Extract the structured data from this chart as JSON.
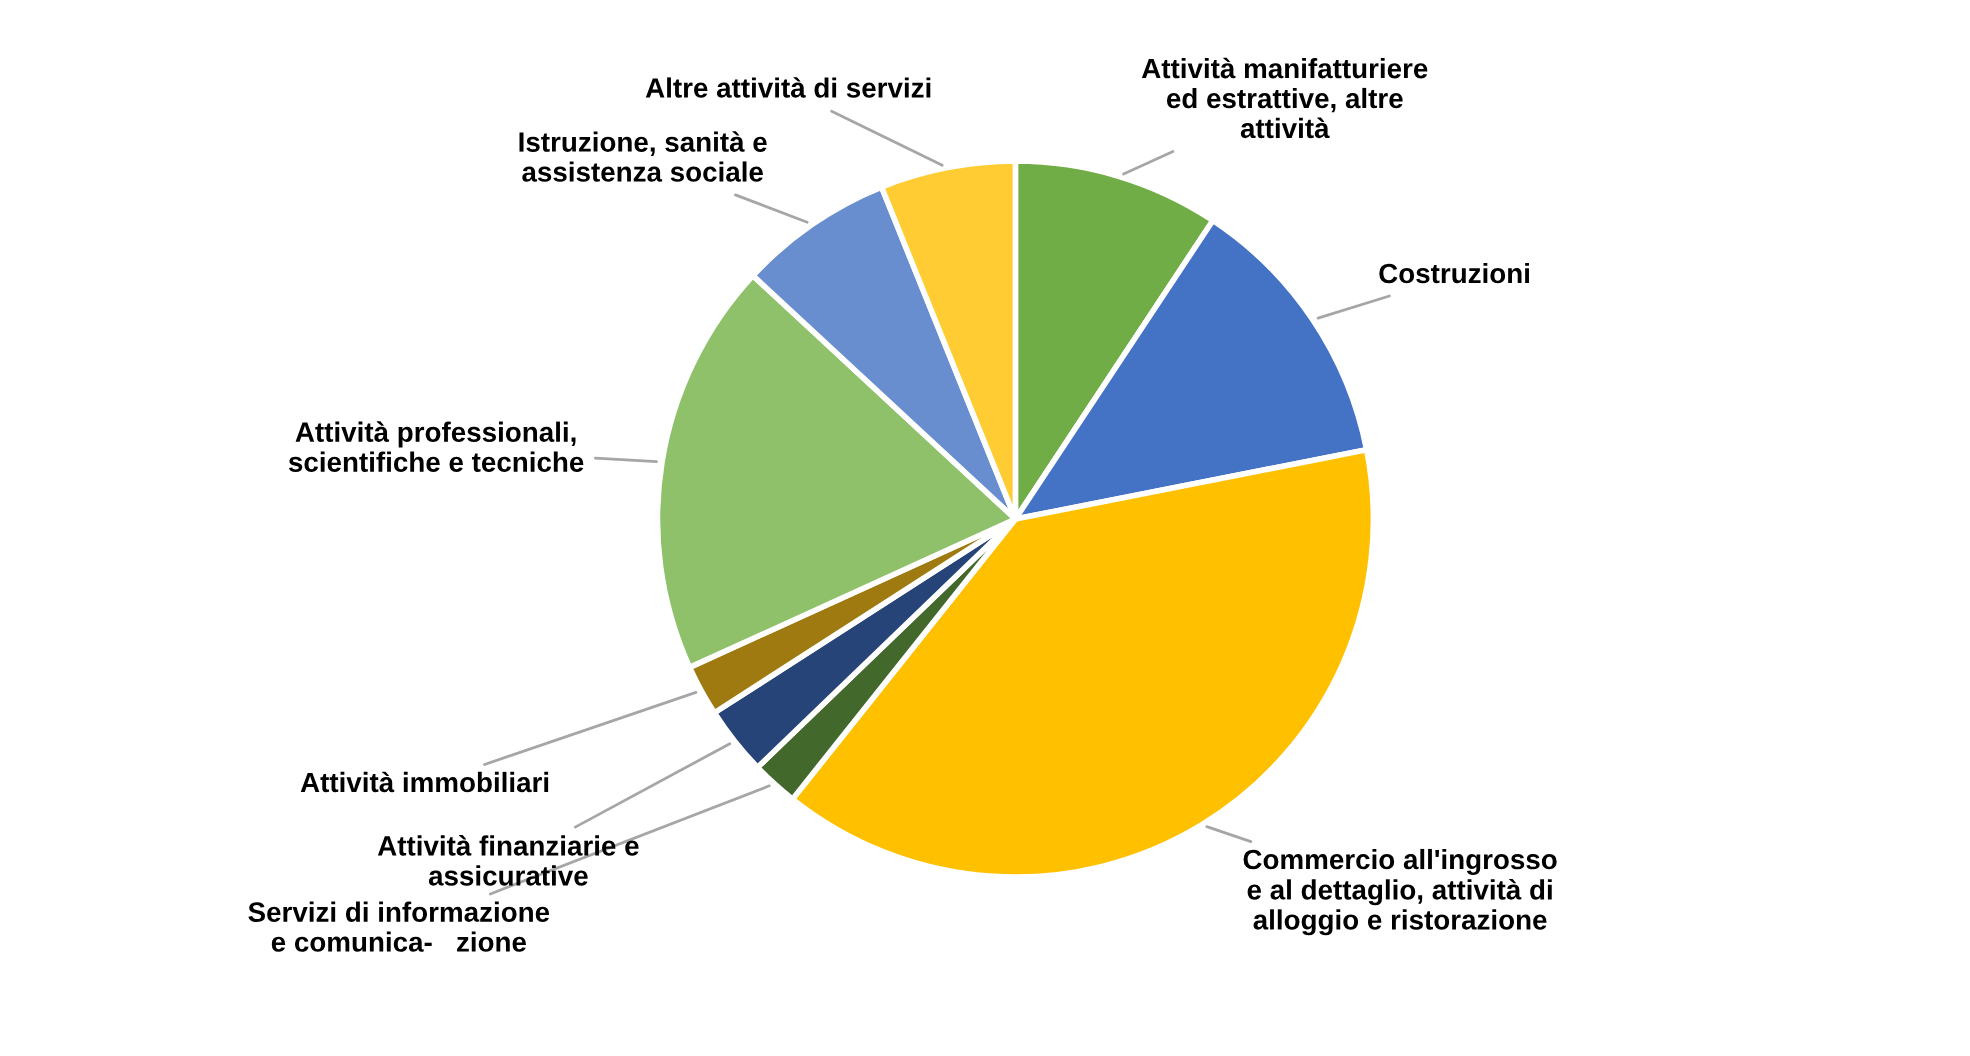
{
  "chart_data": {
    "type": "pie",
    "categories": [
      "Attività manifatturiere\ned estrattive, altre\nattività",
      "Costruzioni",
      "Commercio all'ingrosso\ne al dettaglio, attività di\nalloggio e ristorazione",
      "Servizi di informazione\ne comunica-   zione",
      "Attività finanziarie e\nassicurative",
      "Attività immobiliari",
      "Attività professionali,\nscientifiche e tecniche",
      "Istruzione, sanità e\nassistenza sociale",
      "Altre attività di servizi"
    ],
    "values": [
      9.3,
      12.6,
      38.8,
      2.1,
      3.1,
      2.3,
      18.7,
      7.0,
      6.1
    ],
    "colors": [
      "#70ad47",
      "#4472c4",
      "#ffc000",
      "#43682b",
      "#264478",
      "#9e7a10",
      "#8fc16a",
      "#698ed0",
      "#ffcd33"
    ],
    "legend": false
  }
}
